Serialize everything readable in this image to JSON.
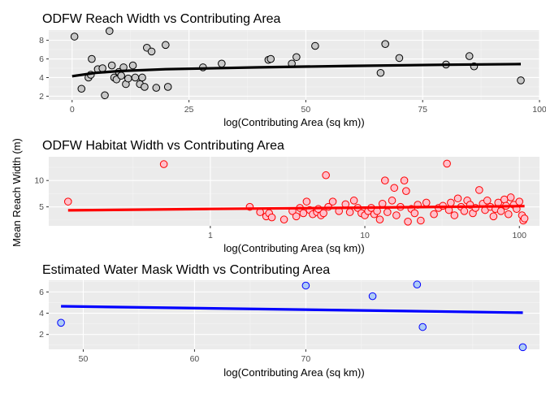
{
  "ylabel": "Mean Reach Width (m)",
  "chart_data": [
    {
      "type": "scatter",
      "title": "ODFW Reach Width vs Contributing Area",
      "xlabel": "log(Contributing Area (sq km))",
      "ylabel": "Mean Reach Width (m)",
      "xscale": "linear",
      "xlim": [
        -5,
        100
      ],
      "ylim": [
        1.6,
        9.1
      ],
      "xticks": [
        0,
        25,
        50,
        75,
        100
      ],
      "yticks": [
        2,
        4,
        6,
        8
      ],
      "point_fill": "#c8c8c8",
      "point_stroke": "#000000",
      "trend_color": "#000000",
      "grid": true,
      "points": [
        [
          0.5,
          8.4
        ],
        [
          2,
          2.8
        ],
        [
          3.5,
          4.0
        ],
        [
          4,
          4.3
        ],
        [
          4.2,
          6.0
        ],
        [
          5.5,
          4.9
        ],
        [
          6.5,
          5.0
        ],
        [
          7,
          2.1
        ],
        [
          8,
          9.0
        ],
        [
          8.5,
          5.3
        ],
        [
          9,
          4.0
        ],
        [
          9.5,
          3.8
        ],
        [
          10,
          4.6
        ],
        [
          10.5,
          4.2
        ],
        [
          11,
          5.1
        ],
        [
          11.5,
          3.3
        ],
        [
          12,
          3.9
        ],
        [
          13,
          5.3
        ],
        [
          13.5,
          4.0
        ],
        [
          14.5,
          3.3
        ],
        [
          15,
          4.0
        ],
        [
          15.5,
          3.0
        ],
        [
          16,
          7.2
        ],
        [
          17,
          6.8
        ],
        [
          18,
          2.9
        ],
        [
          20,
          7.5
        ],
        [
          20.5,
          3.0
        ],
        [
          28,
          5.1
        ],
        [
          32,
          5.5
        ],
        [
          42,
          5.9
        ],
        [
          42.5,
          6.0
        ],
        [
          47,
          5.5
        ],
        [
          48,
          6.2
        ],
        [
          52,
          7.4
        ],
        [
          66,
          4.5
        ],
        [
          67,
          7.6
        ],
        [
          70,
          6.1
        ],
        [
          80,
          5.4
        ],
        [
          85,
          6.3
        ],
        [
          86,
          5.2
        ],
        [
          96,
          3.7
        ]
      ],
      "trend": [
        [
          0,
          4.15
        ],
        [
          5,
          4.5
        ],
        [
          10,
          4.7
        ],
        [
          20,
          4.9
        ],
        [
          40,
          5.1
        ],
        [
          60,
          5.25
        ],
        [
          80,
          5.38
        ],
        [
          96,
          5.45
        ]
      ]
    },
    {
      "type": "scatter",
      "title": "ODFW Habitat Width vs Contributing Area",
      "xlabel": "log(Contributing Area (sq km))",
      "ylabel": "Mean Reach Width (m)",
      "xscale": "log",
      "xlim": [
        0.09,
        135
      ],
      "ylim": [
        1.4,
        14.5
      ],
      "xticks": [
        1,
        10,
        100
      ],
      "yticks": [
        5,
        10
      ],
      "point_fill": "#ffc0cb",
      "point_stroke": "#ff0000",
      "trend_color": "#ff0000",
      "grid": true,
      "points": [
        [
          0.12,
          6.0
        ],
        [
          0.5,
          13.1
        ],
        [
          1.8,
          5.0
        ],
        [
          2.1,
          4.0
        ],
        [
          2.3,
          3.2
        ],
        [
          2.4,
          3.8
        ],
        [
          2.5,
          3.0
        ],
        [
          3,
          2.6
        ],
        [
          3.4,
          4.2
        ],
        [
          3.6,
          3.2
        ],
        [
          3.8,
          4.8
        ],
        [
          4,
          3.8
        ],
        [
          4.2,
          6.0
        ],
        [
          4.4,
          4.4
        ],
        [
          4.6,
          3.6
        ],
        [
          4.9,
          4.0
        ],
        [
          5,
          4.6
        ],
        [
          5.2,
          3.4
        ],
        [
          5.4,
          3.8
        ],
        [
          5.6,
          11.0
        ],
        [
          5.8,
          5.0
        ],
        [
          6.2,
          6.0
        ],
        [
          6.8,
          4.2
        ],
        [
          7.5,
          5.5
        ],
        [
          8,
          4.0
        ],
        [
          8.5,
          6.2
        ],
        [
          9,
          4.8
        ],
        [
          9.5,
          3.8
        ],
        [
          10,
          3.4
        ],
        [
          10.5,
          4.2
        ],
        [
          11,
          4.8
        ],
        [
          11.5,
          3.6
        ],
        [
          12,
          4.2
        ],
        [
          12.5,
          2.6
        ],
        [
          13,
          5.6
        ],
        [
          13.5,
          10.0
        ],
        [
          14,
          4.0
        ],
        [
          15,
          6.2
        ],
        [
          15.5,
          8.6
        ],
        [
          16,
          3.4
        ],
        [
          17,
          5.0
        ],
        [
          18,
          10.0
        ],
        [
          18.5,
          8.0
        ],
        [
          19,
          2.2
        ],
        [
          20,
          4.6
        ],
        [
          21,
          3.8
        ],
        [
          22,
          5.4
        ],
        [
          23,
          2.4
        ],
        [
          25,
          5.8
        ],
        [
          28,
          3.6
        ],
        [
          30,
          4.8
        ],
        [
          32,
          5.2
        ],
        [
          34,
          13.2
        ],
        [
          35,
          4.4
        ],
        [
          36,
          5.8
        ],
        [
          38,
          3.4
        ],
        [
          40,
          6.6
        ],
        [
          42,
          5.0
        ],
        [
          44,
          4.2
        ],
        [
          46,
          6.2
        ],
        [
          48,
          5.4
        ],
        [
          50,
          3.8
        ],
        [
          52,
          4.8
        ],
        [
          55,
          8.2
        ],
        [
          58,
          5.6
        ],
        [
          60,
          4.4
        ],
        [
          62,
          6.2
        ],
        [
          65,
          5.0
        ],
        [
          68,
          3.2
        ],
        [
          70,
          4.6
        ],
        [
          73,
          5.8
        ],
        [
          76,
          4.2
        ],
        [
          80,
          6.4
        ],
        [
          82,
          5.2
        ],
        [
          85,
          3.6
        ],
        [
          88,
          6.8
        ],
        [
          92,
          5.4
        ],
        [
          96,
          4.6
        ],
        [
          100,
          6.0
        ],
        [
          104,
          3.4
        ],
        [
          106,
          2.4
        ],
        [
          108,
          2.8
        ]
      ],
      "trend": [
        [
          0.12,
          4.35
        ],
        [
          1,
          4.6
        ],
        [
          10,
          4.85
        ],
        [
          108,
          5.15
        ]
      ]
    },
    {
      "type": "scatter",
      "title": "Estimated Water Mask Width vs Contributing Area",
      "xlabel": "log(Contributing Area (sq km))",
      "ylabel": "Mean Reach Width (m)",
      "xscale": "linear",
      "xlim": [
        46.9,
        91
      ],
      "ylim": [
        0.6,
        7.1
      ],
      "xticks": [
        50,
        60,
        70
      ],
      "yticks": [
        2,
        4,
        6
      ],
      "point_fill": "#aeccf5",
      "point_stroke": "#0000ff",
      "trend_color": "#0000ff",
      "grid": true,
      "points": [
        [
          48,
          3.1
        ],
        [
          70,
          6.6
        ],
        [
          76,
          5.6
        ],
        [
          80,
          6.7
        ],
        [
          80.5,
          2.7
        ],
        [
          89.5,
          0.8
        ]
      ],
      "trend": [
        [
          48,
          4.65
        ],
        [
          89.5,
          4.05
        ]
      ]
    }
  ]
}
